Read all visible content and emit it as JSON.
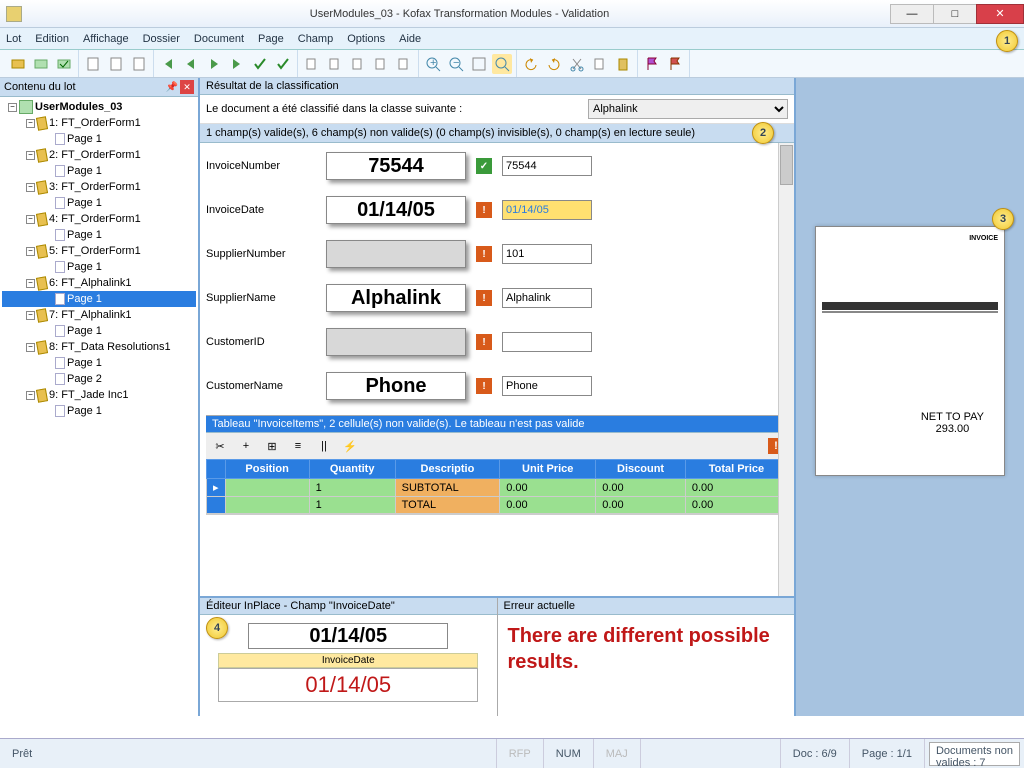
{
  "window": {
    "title": "UserModules_03 - Kofax Transformation Modules - Validation"
  },
  "menu": [
    "Lot",
    "Edition",
    "Affichage",
    "Dossier",
    "Document",
    "Page",
    "Champ",
    "Options",
    "Aide"
  ],
  "left": {
    "title": "Contenu du lot",
    "nodes": [
      {
        "indent": 0,
        "twist": "-",
        "icon": "batch",
        "label": "UserModules_03",
        "bold": true
      },
      {
        "indent": 1,
        "twist": "-",
        "icon": "doc",
        "label": "1: FT_OrderForm1"
      },
      {
        "indent": 2,
        "twist": "",
        "icon": "page",
        "label": "Page 1"
      },
      {
        "indent": 1,
        "twist": "-",
        "icon": "doc",
        "label": "2: FT_OrderForm1"
      },
      {
        "indent": 2,
        "twist": "",
        "icon": "page",
        "label": "Page 1"
      },
      {
        "indent": 1,
        "twist": "-",
        "icon": "doc",
        "label": "3: FT_OrderForm1"
      },
      {
        "indent": 2,
        "twist": "",
        "icon": "page",
        "label": "Page 1"
      },
      {
        "indent": 1,
        "twist": "-",
        "icon": "doc",
        "label": "4: FT_OrderForm1"
      },
      {
        "indent": 2,
        "twist": "",
        "icon": "page",
        "label": "Page 1"
      },
      {
        "indent": 1,
        "twist": "-",
        "icon": "doc",
        "label": "5: FT_OrderForm1"
      },
      {
        "indent": 2,
        "twist": "",
        "icon": "page",
        "label": "Page 1"
      },
      {
        "indent": 1,
        "twist": "-",
        "icon": "doc",
        "label": "6: FT_Alphalink1"
      },
      {
        "indent": 2,
        "twist": "",
        "icon": "page",
        "label": "Page 1",
        "selected": true
      },
      {
        "indent": 1,
        "twist": "-",
        "icon": "doc",
        "label": "7: FT_Alphalink1"
      },
      {
        "indent": 2,
        "twist": "",
        "icon": "page",
        "label": "Page 1"
      },
      {
        "indent": 1,
        "twist": "-",
        "icon": "doc",
        "label": "8: FT_Data Resolutions1"
      },
      {
        "indent": 2,
        "twist": "",
        "icon": "page",
        "label": "Page 1"
      },
      {
        "indent": 2,
        "twist": "",
        "icon": "page",
        "label": "Page 2"
      },
      {
        "indent": 1,
        "twist": "-",
        "icon": "doc",
        "label": "9: FT_Jade Inc1"
      },
      {
        "indent": 2,
        "twist": "",
        "icon": "page",
        "label": "Page 1"
      }
    ]
  },
  "center": {
    "classif_hdr": "Résultat de la classification",
    "classif_text": "Le document a été classifié dans la classe suivante :",
    "classif_value": "Alphalink",
    "validbar": "1 champ(s) valide(s), 6 champ(s) non valide(s) (0 champ(s) invisible(s), 0 champ(s) en lecture seule)",
    "fields": [
      {
        "label": "InvoiceNumber",
        "snippet": "75544",
        "status": "ok",
        "value": "75544"
      },
      {
        "label": "InvoiceDate",
        "snippet": "01/14/05",
        "status": "warn",
        "value": "01/14/05",
        "highlight": true
      },
      {
        "label": "SupplierNumber",
        "snippet": "",
        "status": "warn",
        "value": "101"
      },
      {
        "label": "SupplierName",
        "snippet": "Alphalink",
        "status": "warn",
        "value": "Alphalink"
      },
      {
        "label": "CustomerID",
        "snippet": "",
        "status": "warn",
        "value": ""
      },
      {
        "label": "CustomerName",
        "snippet": "Phone",
        "status": "warn",
        "value": "Phone"
      }
    ],
    "table_hdr": "Tableau \"InvoiceItems\", 2 cellule(s) non valide(s). Le tableau n'est pas valide",
    "table_cols": [
      "Position",
      "Quantity",
      "Descriptio",
      "Unit Price",
      "Discount",
      "Total Price"
    ],
    "table_rows": [
      {
        "cells": [
          "",
          "1",
          "SUBTOTAL",
          "0.00",
          "0.00",
          "0.00"
        ]
      },
      {
        "cells": [
          "",
          "1",
          "TOTAL",
          "0.00",
          "0.00",
          "0.00"
        ]
      }
    ]
  },
  "bottom": {
    "inplace_hdr": "Éditeur InPlace - Champ \"InvoiceDate\"",
    "inplace_snip": "01/14/05",
    "inplace_label": "InvoiceDate",
    "inplace_value": "01/14/05",
    "error_hdr": "Erreur actuelle",
    "error_text": "There are different possible results."
  },
  "status": {
    "ready": "Prêt",
    "rfp": "RFP",
    "num": "NUM",
    "maj": "MAJ",
    "doc": "Doc : 6/9",
    "page": "Page : 1/1",
    "docsnonvalid_l1": "Documents non",
    "docsnonvalid_l2": "valides : 7"
  },
  "preview": {
    "invoice_title": "INVOICE",
    "net_label": "NET TO PAY",
    "net_val": "293.00"
  },
  "colors": {
    "accent": "#2a7de0",
    "header": "#c8dcf0",
    "valid_green": "#9ae090",
    "invalid_orange": "#f0b060",
    "error_red": "#c01818"
  }
}
